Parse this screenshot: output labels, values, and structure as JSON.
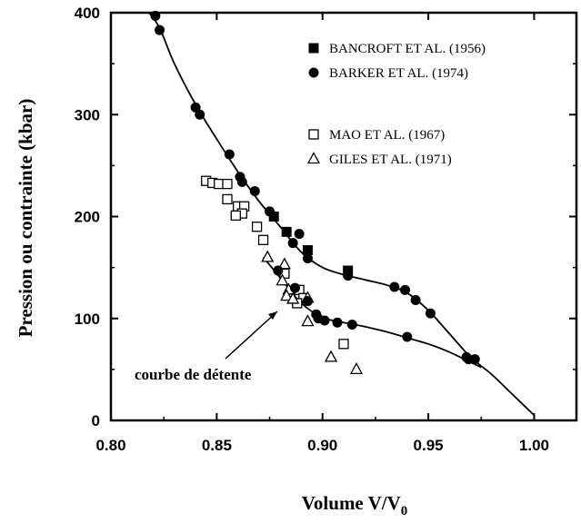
{
  "chart_data": {
    "type": "scatter",
    "xlabel": "Volume V/V",
    "xlabel_sub": "0",
    "ylabel": "Pression ou contrainte (kbar)",
    "xlim": [
      0.8,
      1.02
    ],
    "ylim": [
      0,
      400
    ],
    "xticks": [
      "0.80",
      "0.85",
      "0.90",
      "0.95",
      "1.00"
    ],
    "yticks": [
      "0",
      "100",
      "200",
      "300",
      "400"
    ],
    "annotation": "courbe de détente",
    "legend_placement": "top-right",
    "series": [
      {
        "name": "BANCROFT ET AL. (1956)",
        "marker": "filled-square",
        "points": [
          [
            0.877,
            200
          ],
          [
            0.883,
            185
          ],
          [
            0.893,
            167
          ],
          [
            0.912,
            147
          ]
        ]
      },
      {
        "name": "BARKER ET AL. (1974)",
        "marker": "filled-circle",
        "points": [
          [
            0.821,
            397
          ],
          [
            0.823,
            383
          ],
          [
            0.84,
            307
          ],
          [
            0.842,
            300
          ],
          [
            0.856,
            261
          ],
          [
            0.861,
            239
          ],
          [
            0.862,
            234
          ],
          [
            0.868,
            225
          ],
          [
            0.875,
            205
          ],
          [
            0.889,
            183
          ],
          [
            0.886,
            174
          ],
          [
            0.893,
            159
          ],
          [
            0.912,
            142
          ],
          [
            0.934,
            131
          ],
          [
            0.939,
            128
          ],
          [
            0.944,
            118
          ],
          [
            0.951,
            105
          ],
          [
            0.879,
            147
          ],
          [
            0.887,
            130
          ],
          [
            0.893,
            117
          ],
          [
            0.897,
            104
          ],
          [
            0.898,
            100
          ],
          [
            0.901,
            98
          ],
          [
            0.907,
            96
          ],
          [
            0.914,
            94
          ],
          [
            0.94,
            82
          ],
          [
            0.968,
            62
          ],
          [
            0.969,
            60
          ],
          [
            0.972,
            60
          ]
        ]
      },
      {
        "name": "MAO ET AL. (1967)",
        "marker": "open-square",
        "points": [
          [
            0.845,
            235
          ],
          [
            0.848,
            233
          ],
          [
            0.851,
            232
          ],
          [
            0.855,
            232
          ],
          [
            0.855,
            217
          ],
          [
            0.86,
            210
          ],
          [
            0.863,
            210
          ],
          [
            0.862,
            203
          ],
          [
            0.859,
            201
          ],
          [
            0.869,
            190
          ],
          [
            0.872,
            177
          ],
          [
            0.882,
            144
          ],
          [
            0.889,
            128
          ],
          [
            0.891,
            120
          ],
          [
            0.888,
            115
          ],
          [
            0.91,
            75
          ]
        ]
      },
      {
        "name": "GILES ET AL. (1971)",
        "marker": "open-triangle",
        "points": [
          [
            0.874,
            160
          ],
          [
            0.882,
            153
          ],
          [
            0.881,
            137
          ],
          [
            0.884,
            128
          ],
          [
            0.883,
            122
          ],
          [
            0.886,
            119
          ],
          [
            0.893,
            120
          ],
          [
            0.893,
            97
          ],
          [
            0.904,
            62
          ],
          [
            0.916,
            50
          ]
        ]
      }
    ],
    "curves": {
      "upper": [
        [
          0.818,
          400
        ],
        [
          0.823,
          385
        ],
        [
          0.83,
          350
        ],
        [
          0.84,
          310
        ],
        [
          0.85,
          276
        ],
        [
          0.86,
          244
        ],
        [
          0.87,
          215
        ],
        [
          0.88,
          190
        ],
        [
          0.89,
          165
        ],
        [
          0.9,
          150
        ],
        [
          0.91,
          143
        ],
        [
          0.92,
          138
        ],
        [
          0.93,
          133
        ],
        [
          0.94,
          125
        ],
        [
          0.95,
          108
        ],
        [
          0.96,
          85
        ],
        [
          0.97,
          62
        ],
        [
          0.98,
          45
        ],
        [
          0.99,
          25
        ],
        [
          1.0,
          5
        ]
      ],
      "lower": [
        [
          0.872,
          160
        ],
        [
          0.88,
          140
        ],
        [
          0.89,
          115
        ],
        [
          0.9,
          101
        ],
        [
          0.91,
          96
        ],
        [
          0.92,
          92
        ],
        [
          0.93,
          87
        ],
        [
          0.94,
          81
        ],
        [
          0.95,
          75
        ],
        [
          0.96,
          67
        ],
        [
          0.97,
          57
        ],
        [
          0.975,
          52
        ]
      ]
    }
  }
}
